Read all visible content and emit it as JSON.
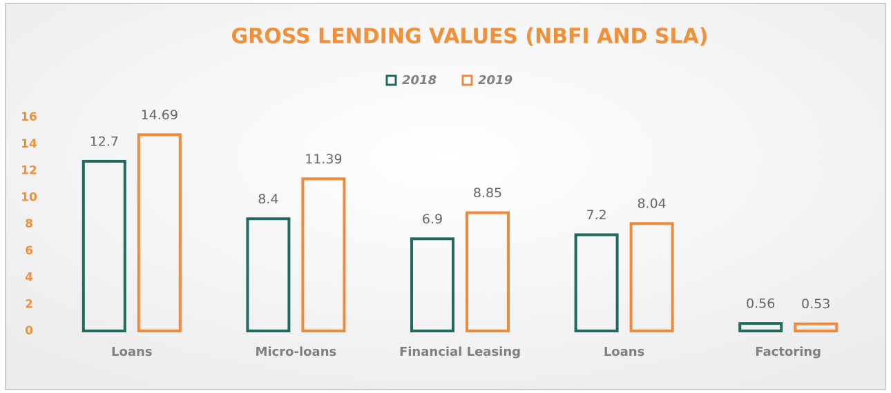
{
  "chart_data": {
    "type": "bar",
    "title": "GROSS LENDING VALUES (NBFI AND SLA)",
    "categories": [
      "Loans",
      "Micro-loans",
      "Financial Leasing",
      "Loans",
      "Factoring"
    ],
    "series": [
      {
        "name": "2018",
        "color": "#1f6b62",
        "values": [
          12.7,
          8.4,
          6.9,
          7.2,
          0.56
        ]
      },
      {
        "name": "2019",
        "color": "#ef8a3c",
        "values": [
          14.69,
          11.39,
          8.85,
          8.04,
          0.53
        ]
      }
    ],
    "ylim": [
      0,
      16
    ],
    "yticks": [
      0,
      2,
      4,
      6,
      8,
      10,
      12,
      14,
      16
    ],
    "grid": false,
    "legend": "top"
  }
}
